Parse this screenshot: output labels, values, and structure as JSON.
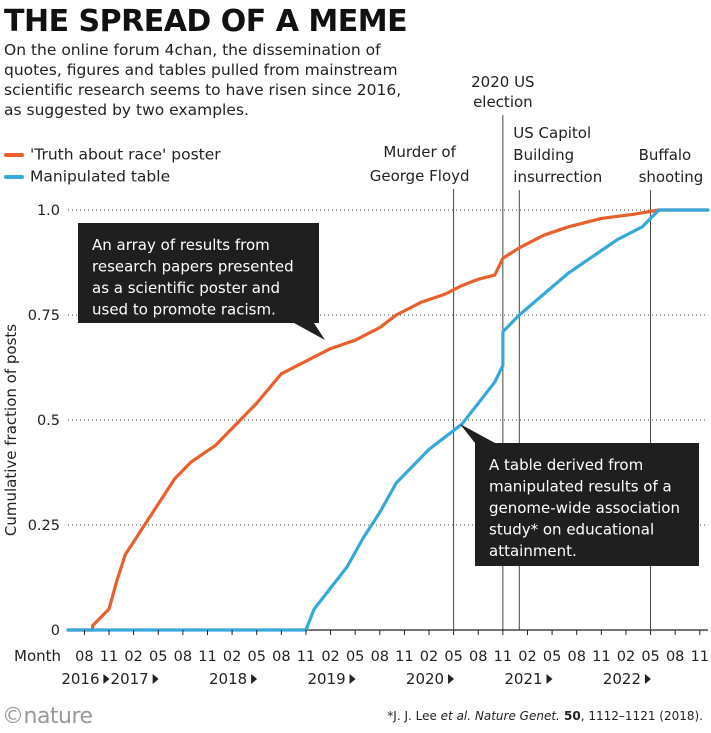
{
  "title": "THE SPREAD OF A MEME",
  "subtitle": "On the online forum 4chan, the dissemination of quotes, figures and tables pulled from mainstream scientific research seems to have risen since 2016, as suggested by two examples.",
  "footnote": {
    "authors": "*J. J. Lee ",
    "etal": "et al.",
    "journal": " Nature Genet.",
    "volume": " 50",
    "rest": ", 1112–1121 (2018)."
  },
  "logo": "©nature",
  "colors": {
    "poster": "#e8602c",
    "table": "#36a8dc",
    "callout_bg": "#1f1f1f",
    "grid": "#555555"
  },
  "chart_data": {
    "type": "line",
    "xlabel": "Month",
    "ylabel": "Cumulative fraction of posts",
    "ylim": [
      0,
      1
    ],
    "xlim": [
      "2016-06",
      "2022-12"
    ],
    "yticks": [
      {
        "value": 0,
        "label": "0"
      },
      {
        "value": 0.25,
        "label": "0.25"
      },
      {
        "value": 0.5,
        "label": "0.5"
      },
      {
        "value": 0.75,
        "label": "0.75"
      },
      {
        "value": 1.0,
        "label": "1.0"
      }
    ],
    "month_ticks": [
      {
        "month": "2016-08",
        "label": "08"
      },
      {
        "month": "2016-11",
        "label": "11"
      },
      {
        "month": "2017-02",
        "label": "02"
      },
      {
        "month": "2017-05",
        "label": "05"
      },
      {
        "month": "2017-08",
        "label": "08"
      },
      {
        "month": "2017-11",
        "label": "11"
      },
      {
        "month": "2018-02",
        "label": "02"
      },
      {
        "month": "2018-05",
        "label": "05"
      },
      {
        "month": "2018-08",
        "label": "08"
      },
      {
        "month": "2018-11",
        "label": "11"
      },
      {
        "month": "2019-02",
        "label": "02"
      },
      {
        "month": "2019-05",
        "label": "05"
      },
      {
        "month": "2019-08",
        "label": "08"
      },
      {
        "month": "2019-11",
        "label": "11"
      },
      {
        "month": "2020-02",
        "label": "02"
      },
      {
        "month": "2020-05",
        "label": "05"
      },
      {
        "month": "2020-08",
        "label": "08"
      },
      {
        "month": "2020-11",
        "label": "11"
      },
      {
        "month": "2021-02",
        "label": "02"
      },
      {
        "month": "2021-05",
        "label": "05"
      },
      {
        "month": "2021-08",
        "label": "08"
      },
      {
        "month": "2021-11",
        "label": "11"
      },
      {
        "month": "2022-02",
        "label": "02"
      },
      {
        "month": "2022-05",
        "label": "05"
      },
      {
        "month": "2022-08",
        "label": "08"
      },
      {
        "month": "2022-11",
        "label": "11"
      }
    ],
    "year_labels": [
      {
        "month": "2016-08",
        "label": "2016"
      },
      {
        "month": "2017-02",
        "label": "2017"
      },
      {
        "month": "2018-02",
        "label": "2018"
      },
      {
        "month": "2019-02",
        "label": "2019"
      },
      {
        "month": "2020-02",
        "label": "2020"
      },
      {
        "month": "2021-02",
        "label": "2021"
      },
      {
        "month": "2022-02",
        "label": "2022"
      }
    ],
    "series": [
      {
        "name": "'Truth about race' poster",
        "color": "#e8602c",
        "points": [
          [
            "2016-06",
            0
          ],
          [
            "2016-09",
            0
          ],
          [
            "2016-09",
            0.01
          ],
          [
            "2016-11",
            0.05
          ],
          [
            "2016-12",
            0.12
          ],
          [
            "2017-01",
            0.18
          ],
          [
            "2017-03",
            0.24
          ],
          [
            "2017-05",
            0.3
          ],
          [
            "2017-07",
            0.36
          ],
          [
            "2017-09",
            0.4
          ],
          [
            "2017-12",
            0.44
          ],
          [
            "2018-02",
            0.48
          ],
          [
            "2018-05",
            0.54
          ],
          [
            "2018-08",
            0.61
          ],
          [
            "2018-11",
            0.64
          ],
          [
            "2019-02",
            0.67
          ],
          [
            "2019-05",
            0.69
          ],
          [
            "2019-08",
            0.72
          ],
          [
            "2019-10",
            0.75
          ],
          [
            "2020-01",
            0.78
          ],
          [
            "2020-04",
            0.8
          ],
          [
            "2020-06",
            0.82
          ],
          [
            "2020-08",
            0.835
          ],
          [
            "2020-10",
            0.845
          ],
          [
            "2020-11",
            0.885
          ],
          [
            "2021-01",
            0.91
          ],
          [
            "2021-04",
            0.94
          ],
          [
            "2021-07",
            0.96
          ],
          [
            "2021-11",
            0.98
          ],
          [
            "2022-03",
            0.99
          ],
          [
            "2022-06",
            1.0
          ],
          [
            "2022-12",
            1.0
          ]
        ]
      },
      {
        "name": "Manipulated table",
        "color": "#36a8dc",
        "points": [
          [
            "2016-06",
            0
          ],
          [
            "2018-11",
            0
          ],
          [
            "2018-12",
            0.05
          ],
          [
            "2019-02",
            0.1
          ],
          [
            "2019-04",
            0.15
          ],
          [
            "2019-06",
            0.22
          ],
          [
            "2019-08",
            0.28
          ],
          [
            "2019-10",
            0.35
          ],
          [
            "2019-12",
            0.39
          ],
          [
            "2020-02",
            0.43
          ],
          [
            "2020-04",
            0.46
          ],
          [
            "2020-06",
            0.49
          ],
          [
            "2020-08",
            0.54
          ],
          [
            "2020-10",
            0.59
          ],
          [
            "2020-11",
            0.63
          ],
          [
            "2020-11",
            0.71
          ],
          [
            "2021-01",
            0.75
          ],
          [
            "2021-04",
            0.8
          ],
          [
            "2021-07",
            0.85
          ],
          [
            "2021-10",
            0.89
          ],
          [
            "2022-01",
            0.93
          ],
          [
            "2022-04",
            0.96
          ],
          [
            "2022-06",
            1.0
          ],
          [
            "2022-12",
            1.0
          ]
        ]
      }
    ],
    "events": [
      {
        "month": "2020-05",
        "label_lines": [
          "Murder of",
          "George Floyd"
        ]
      },
      {
        "month": "2020-11",
        "label_lines": [
          "2020 US",
          "election"
        ]
      },
      {
        "month": "2021-01",
        "label_lines": [
          "US Capitol",
          "Building",
          "insurrection"
        ]
      },
      {
        "month": "2022-05",
        "label_lines": [
          "Buffalo",
          "shooting"
        ]
      }
    ],
    "annotations": [
      {
        "text_lines": [
          "An array of results from",
          "research papers presented",
          "as a scientific poster and",
          "used to promote racism."
        ],
        "anchor": [
          "2018-11",
          0.63
        ]
      },
      {
        "text_lines": [
          "A table derived from",
          "manipulated results of a",
          "genome-wide association",
          "study* on educational",
          "attainment."
        ],
        "anchor": [
          "2020-05",
          0.49
        ]
      }
    ]
  }
}
